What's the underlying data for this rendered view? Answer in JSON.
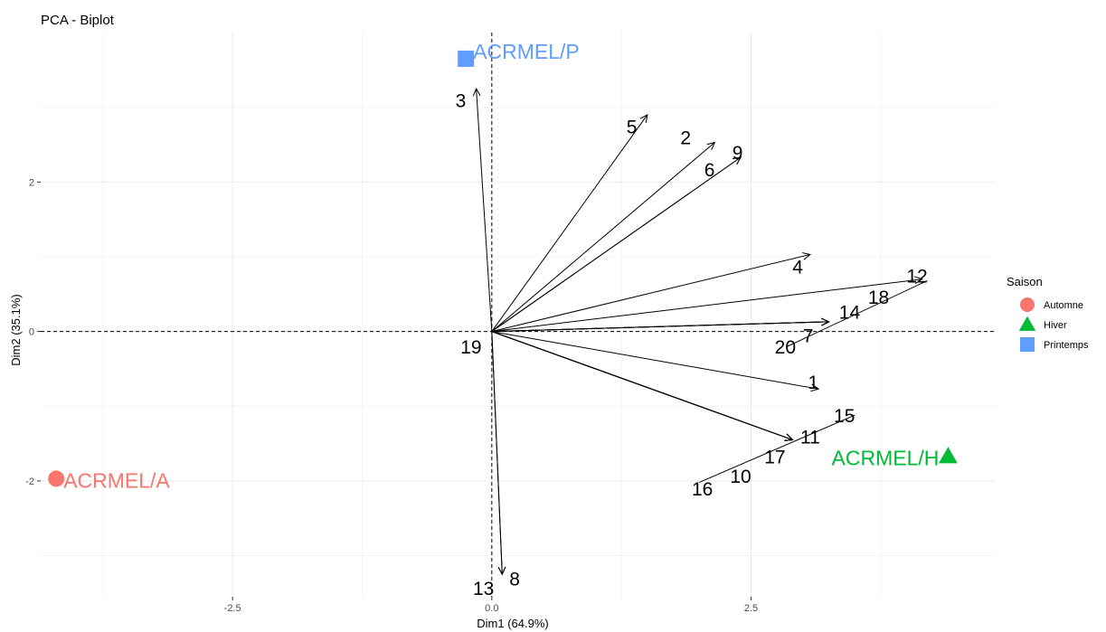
{
  "chart_data": {
    "type": "scatter",
    "title": "PCA - Biplot",
    "xlabel": "Dim1 (64.9%)",
    "ylabel": "Dim2 (35.1%)",
    "xlim": [
      -4.35,
      4.85
    ],
    "ylim": [
      -3.55,
      4.0
    ],
    "xticks": [
      -2.5,
      0.0,
      2.5
    ],
    "xtick_labels": [
      "-2.5",
      "0.0",
      "2.5"
    ],
    "yticks": [
      -2,
      0,
      2
    ],
    "ytick_labels": [
      "-2",
      "0",
      "2"
    ],
    "grid": true,
    "legend": {
      "title": "Saison",
      "position": "right",
      "entries": [
        {
          "label": "Automne",
          "color": "#F8766D",
          "shape": "circle"
        },
        {
          "label": "Hiver",
          "color": "#00BA38",
          "shape": "triangle"
        },
        {
          "label": "Printemps",
          "color": "#619CFF",
          "shape": "square"
        }
      ]
    },
    "individuals": [
      {
        "label": "ACRMEL/A",
        "group": "Automne",
        "x": -4.2,
        "y": -1.97
      },
      {
        "label": "ACRMEL/H",
        "group": "Hiver",
        "x": 4.4,
        "y": -1.67
      },
      {
        "label": "ACRMEL/P",
        "group": "Printemps",
        "x": -0.25,
        "y": 3.65
      }
    ],
    "variables": [
      {
        "label": "1",
        "x": 3.15,
        "y": -0.77,
        "label_x": 3.1,
        "label_y": -0.67
      },
      {
        "label": "2",
        "x": 2.15,
        "y": 2.53,
        "label_x": 1.87,
        "label_y": 2.6
      },
      {
        "label": "3",
        "x": -0.15,
        "y": 3.25,
        "label_x": -0.3,
        "label_y": 3.1
      },
      {
        "label": "4",
        "x": 3.07,
        "y": 1.03,
        "label_x": 2.95,
        "label_y": 0.87
      },
      {
        "label": "5",
        "x": 1.5,
        "y": 2.9,
        "label_x": 1.35,
        "label_y": 2.75
      },
      {
        "label": "6",
        "x": 2.4,
        "y": 2.33,
        "label_x": 2.1,
        "label_y": 2.17
      },
      {
        "label": "7",
        "x": 3.25,
        "y": 0.13,
        "label_x": 3.05,
        "label_y": -0.05
      },
      {
        "label": "8",
        "x": 0.1,
        "y": -3.25,
        "label_x": 0.22,
        "label_y": -3.3
      },
      {
        "label": "9",
        "x": 2.4,
        "y": 2.33,
        "label_x": 2.37,
        "label_y": 2.4
      },
      {
        "label": "10",
        "x": 2.9,
        "y": -1.45,
        "label_x": 2.4,
        "label_y": -1.93
      },
      {
        "label": "11",
        "x": 2.9,
        "y": -1.45,
        "label_x": 3.07,
        "label_y": -1.4
      },
      {
        "label": "12",
        "x": 4.15,
        "y": 0.7,
        "label_x": 4.1,
        "label_y": 0.75
      },
      {
        "label": "13",
        "x": 0.1,
        "y": -3.25,
        "label_x": -0.08,
        "label_y": -3.43
      },
      {
        "label": "14",
        "x": 3.25,
        "y": 0.13,
        "label_x": 3.45,
        "label_y": 0.27
      },
      {
        "label": "15",
        "x": 2.9,
        "y": -1.45,
        "label_x": 3.4,
        "label_y": -1.12
      },
      {
        "label": "16",
        "x": 2.9,
        "y": -1.45,
        "label_x": 2.03,
        "label_y": -2.1
      },
      {
        "label": "17",
        "x": 2.9,
        "y": -1.45,
        "label_x": 2.73,
        "label_y": -1.67
      },
      {
        "label": "18",
        "x": 3.25,
        "y": 0.13,
        "label_x": 3.73,
        "label_y": 0.47
      },
      {
        "label": "19",
        "x": 0.0,
        "y": 0.0,
        "label_x": -0.2,
        "label_y": -0.2
      },
      {
        "label": "20",
        "x": 3.25,
        "y": 0.13,
        "label_x": 2.83,
        "label_y": -0.2
      }
    ],
    "variable_extensions": [
      {
        "from": [
          2.0,
          -2.02
        ],
        "to": [
          3.5,
          -1.12
        ]
      },
      {
        "from": [
          2.85,
          -0.2
        ],
        "to": [
          4.2,
          0.68
        ]
      }
    ]
  }
}
